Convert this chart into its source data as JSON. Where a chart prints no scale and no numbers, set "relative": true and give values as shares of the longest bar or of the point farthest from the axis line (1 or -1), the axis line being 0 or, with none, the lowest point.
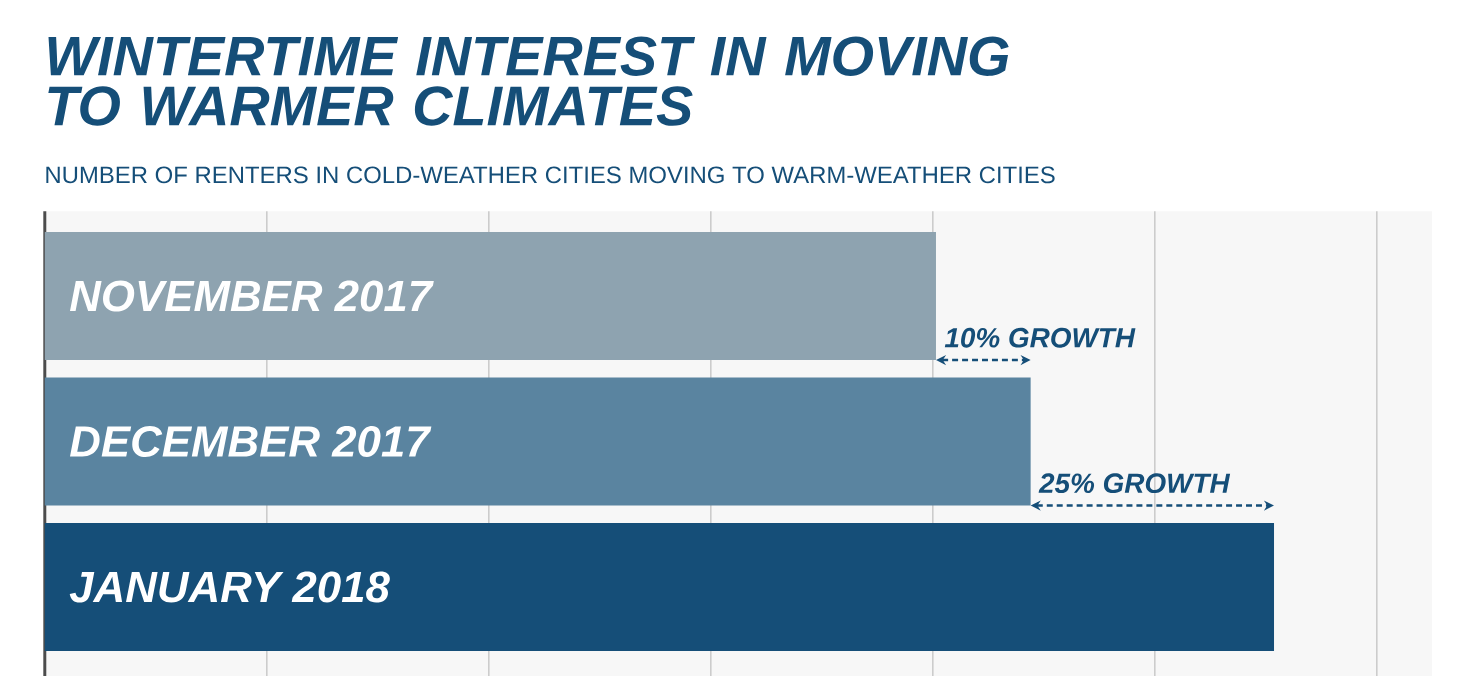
{
  "chart_data": {
    "type": "bar",
    "orientation": "horizontal",
    "relative": true,
    "title": "WINTERTIME INTEREST IN MOVING TO WARMER CLIMATES",
    "subtitle": "NUMBER OF RENTERS IN COLD-WEATHER CITIES MOVING TO WARM-WEATHER CITIES",
    "categories": [
      "NOVEMBER 2017",
      "DECEMBER 2017",
      "JANUARY 2018"
    ],
    "values": [
      0.725,
      0.802,
      1
    ],
    "colors": [
      "#8ea3b0",
      "#5a84a0",
      "#154e78"
    ],
    "grid": "x",
    "annotations": [
      "10% GROWTH",
      "25% GROWTH"
    ]
  }
}
